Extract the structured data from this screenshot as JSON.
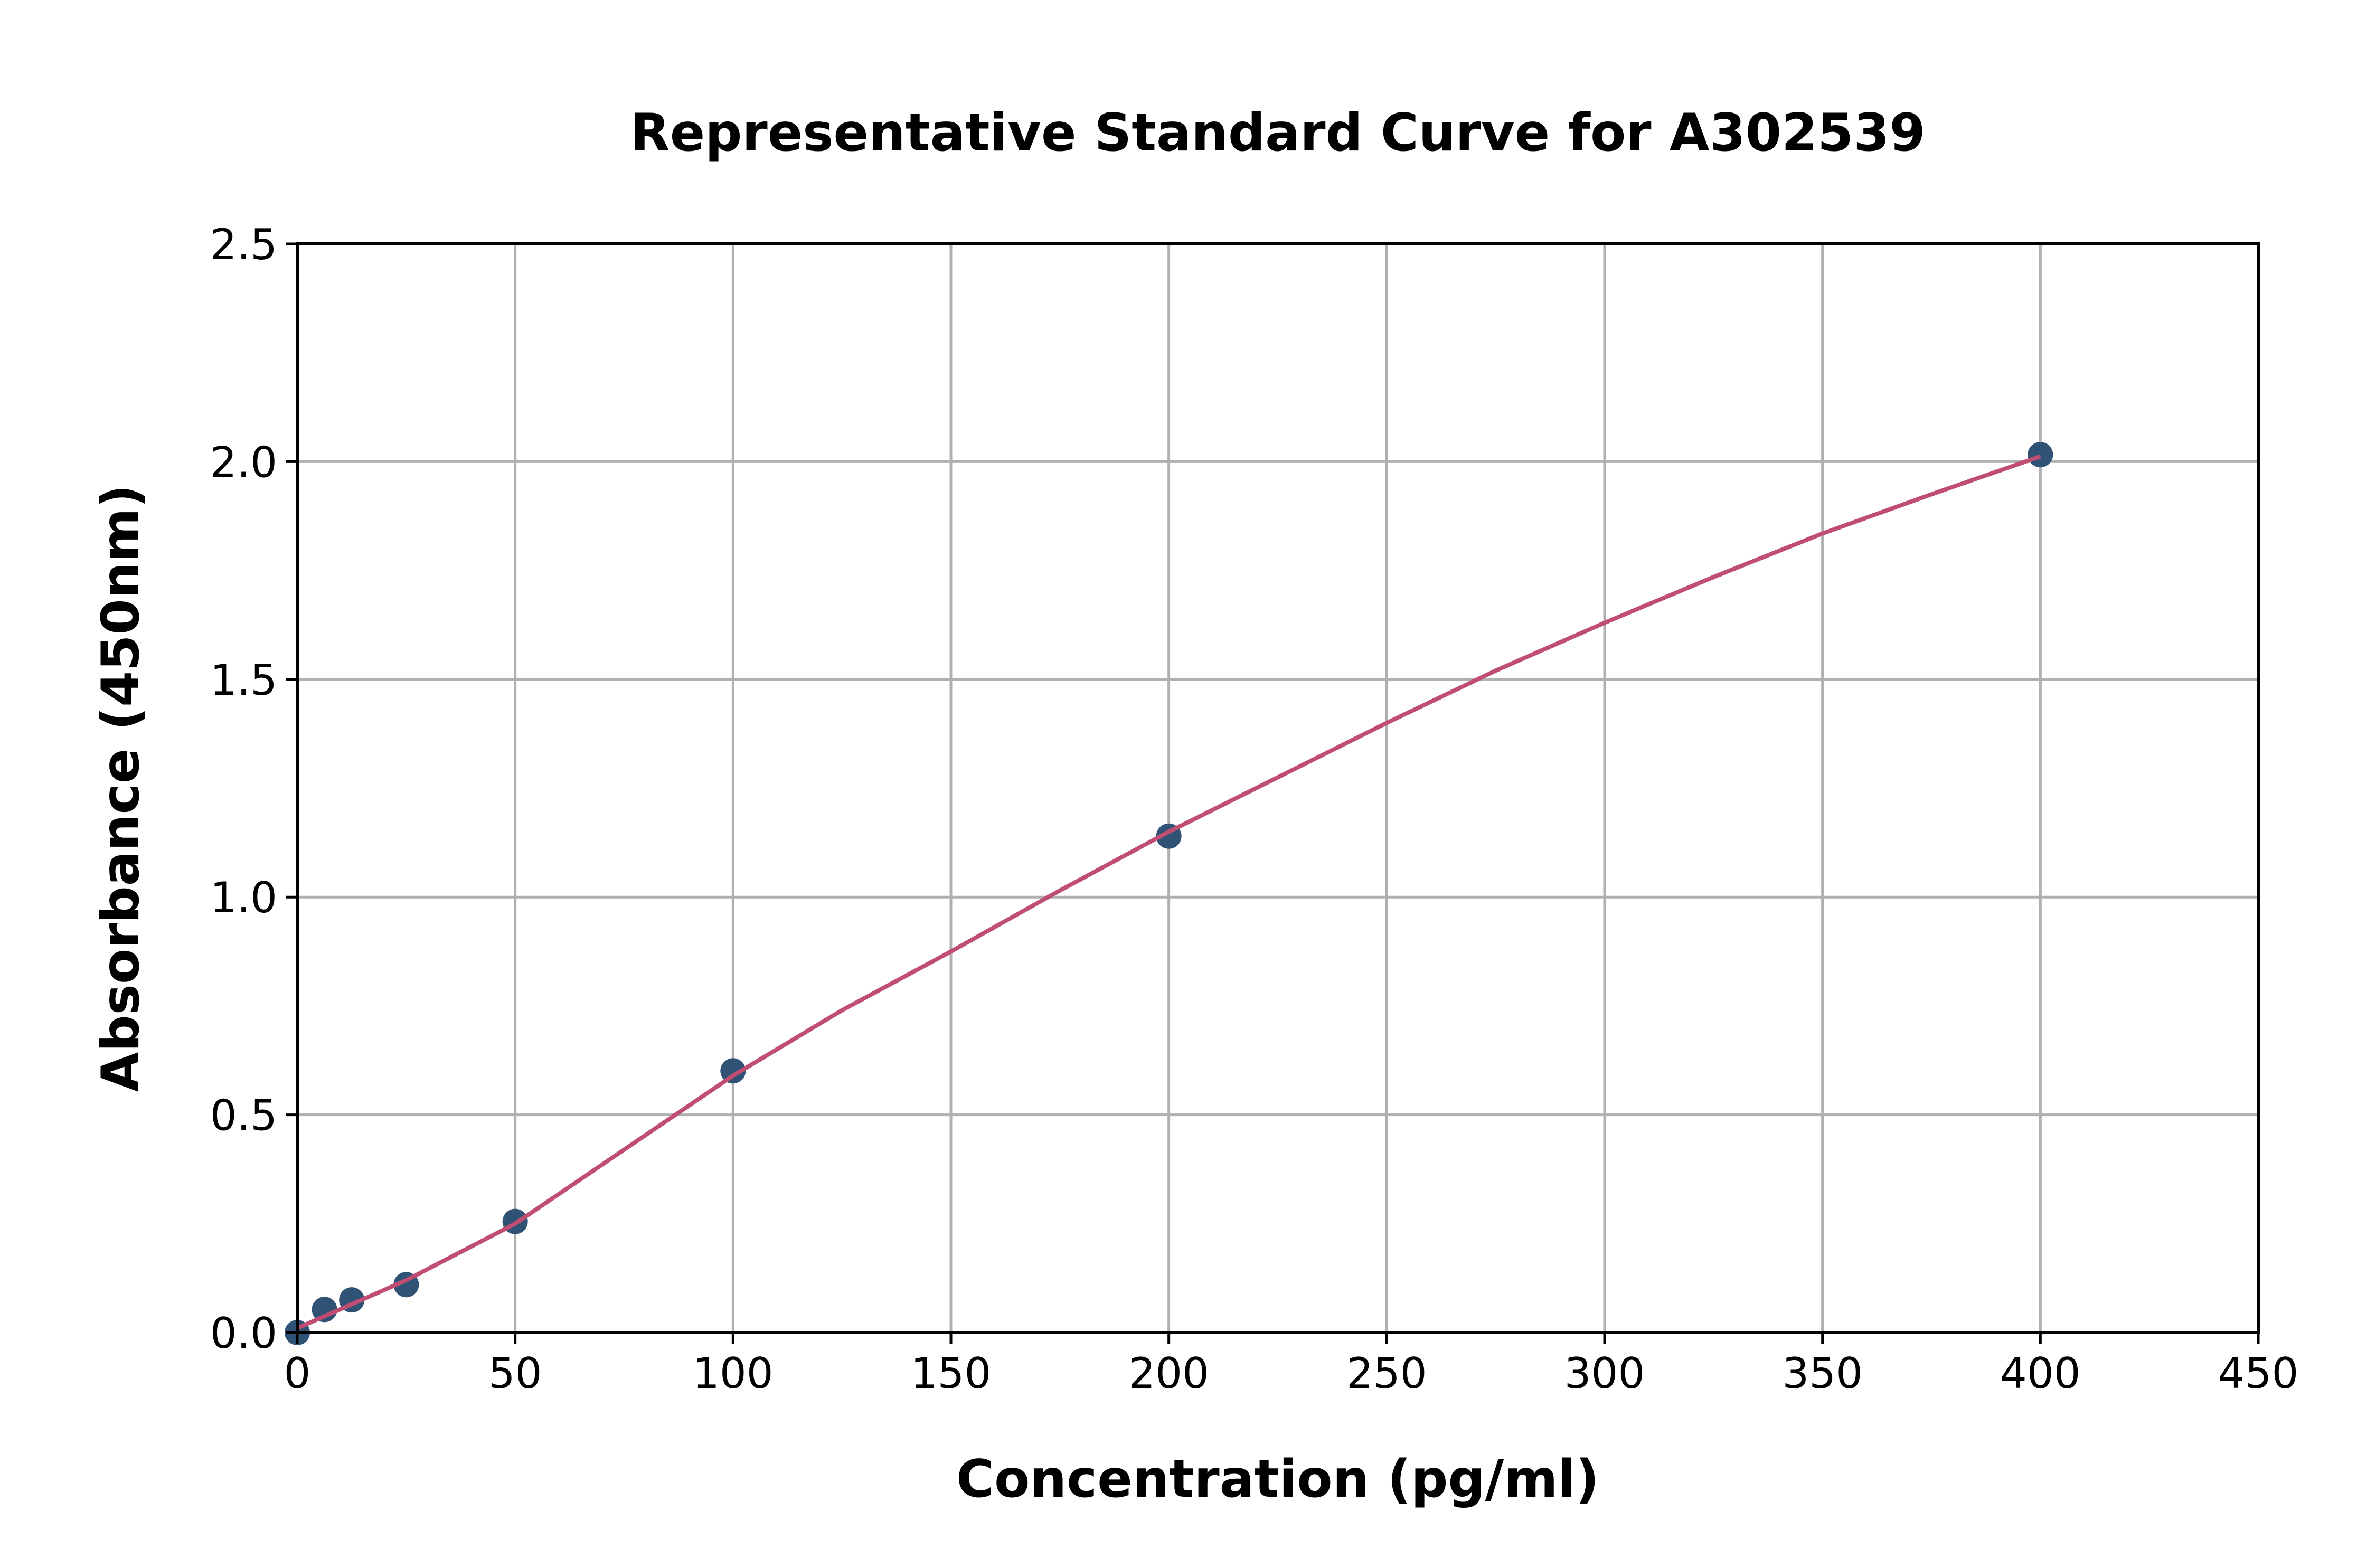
{
  "chart_data": {
    "type": "scatter",
    "title": "Representative Standard Curve for A302539",
    "xlabel": "Concentration (pg/ml)",
    "ylabel": "Absorbance (450nm)",
    "xlim": [
      0,
      450
    ],
    "ylim": [
      0,
      2.5
    ],
    "xticks": [
      "0",
      "50",
      "100",
      "150",
      "200",
      "250",
      "300",
      "350",
      "400",
      "450"
    ],
    "yticks": [
      "0.0",
      "0.5",
      "1.0",
      "1.5",
      "2.0",
      "2.5"
    ],
    "grid": true,
    "points": {
      "x": [
        0,
        6.25,
        12.5,
        25,
        50,
        100,
        200,
        400
      ],
      "y": [
        0.0,
        0.053,
        0.075,
        0.11,
        0.255,
        0.601,
        1.14,
        2.016
      ]
    },
    "fit_curve": {
      "x": [
        0,
        25,
        50,
        75,
        100,
        125,
        150,
        175,
        200,
        225,
        250,
        275,
        300,
        325,
        350,
        375,
        400
      ],
      "y": [
        0.01,
        0.12,
        0.25,
        0.42,
        0.59,
        0.74,
        0.875,
        1.015,
        1.15,
        1.275,
        1.4,
        1.52,
        1.63,
        1.735,
        1.835,
        1.925,
        2.012
      ]
    },
    "colors": {
      "points": "#2f5275",
      "curve": "#c04d72",
      "grid": "#b0b0b0"
    }
  }
}
